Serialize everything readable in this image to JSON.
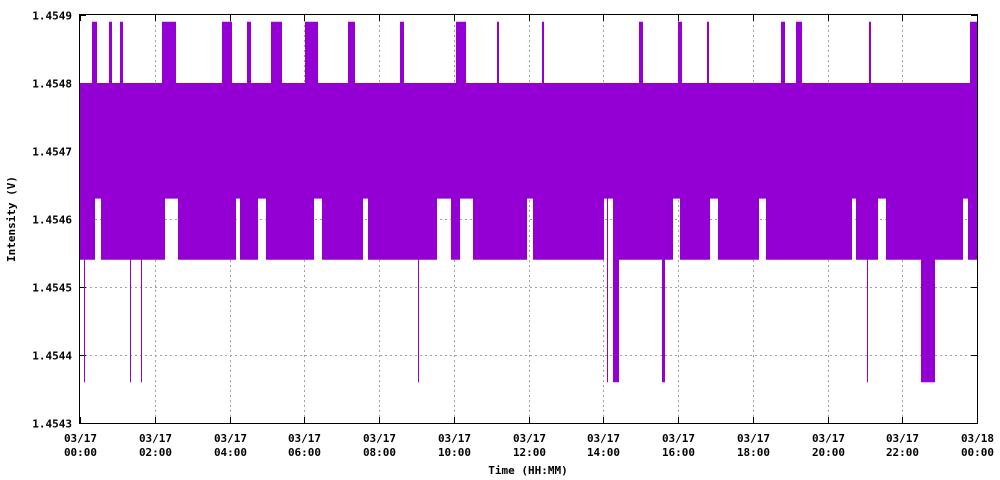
{
  "chart_data": {
    "type": "line",
    "xlabel": "Time (HH:MM)",
    "ylabel": "Intensity (V)",
    "ylim": [
      1.4543,
      1.4549
    ],
    "xlim_hours": [
      0,
      24
    ],
    "grid": true,
    "series_color": "#9400D3",
    "y_ticks": [
      "1.4543",
      "1.4544",
      "1.4545",
      "1.4546",
      "1.4547",
      "1.4548",
      "1.4549"
    ],
    "x_ticks": [
      {
        "hour": 0,
        "date": "03/17",
        "time": "00:00"
      },
      {
        "hour": 2,
        "date": "03/17",
        "time": "02:00"
      },
      {
        "hour": 4,
        "date": "03/17",
        "time": "04:00"
      },
      {
        "hour": 6,
        "date": "03/17",
        "time": "06:00"
      },
      {
        "hour": 8,
        "date": "03/17",
        "time": "08:00"
      },
      {
        "hour": 10,
        "date": "03/17",
        "time": "10:00"
      },
      {
        "hour": 12,
        "date": "03/17",
        "time": "12:00"
      },
      {
        "hour": 14,
        "date": "03/17",
        "time": "14:00"
      },
      {
        "hour": 16,
        "date": "03/17",
        "time": "16:00"
      },
      {
        "hour": 18,
        "date": "03/17",
        "time": "18:00"
      },
      {
        "hour": 20,
        "date": "03/17",
        "time": "20:00"
      },
      {
        "hour": 22,
        "date": "03/17",
        "time": "22:00"
      },
      {
        "hour": 24,
        "date": "03/18",
        "time": "00:00"
      }
    ],
    "levels": [
      1.45436,
      1.45454,
      1.45463,
      1.4548,
      1.45489
    ],
    "dense_band": [
      1.45454,
      1.4548
    ],
    "dense_band_gaps_hours": [
      [
        0.38,
        0.55
      ],
      [
        2.25,
        2.62
      ],
      [
        4.15,
        4.28
      ],
      [
        4.75,
        4.95
      ],
      [
        6.25,
        6.45
      ],
      [
        7.55,
        7.7
      ],
      [
        9.55,
        9.9
      ],
      [
        10.15,
        10.5
      ],
      [
        11.95,
        12.1
      ],
      [
        14.0,
        14.3
      ],
      [
        15.85,
        16.05
      ],
      [
        16.85,
        17.05
      ],
      [
        18.15,
        18.35
      ],
      [
        20.65,
        20.75
      ],
      [
        21.35,
        21.55
      ],
      [
        23.6,
        23.75
      ]
    ],
    "high_spikes_hours": [
      [
        0.3,
        0.45
      ],
      [
        0.75,
        0.85
      ],
      [
        1.05,
        1.15
      ],
      [
        2.18,
        2.55
      ],
      [
        3.78,
        4.05
      ],
      [
        4.45,
        4.55
      ],
      [
        5.1,
        5.4
      ],
      [
        6.0,
        6.35
      ],
      [
        7.15,
        7.35
      ],
      [
        8.55,
        8.65
      ],
      [
        10.05,
        10.32
      ],
      [
        11.15,
        11.2
      ],
      [
        12.35,
        12.4
      ],
      [
        14.95,
        15.05
      ],
      [
        16.0,
        16.1
      ],
      [
        16.75,
        16.82
      ],
      [
        18.75,
        18.85
      ],
      [
        19.15,
        19.3
      ],
      [
        21.1,
        21.15
      ],
      [
        23.8,
        24.0
      ]
    ],
    "low_spikes_hours": [
      [
        0.09,
        0.11
      ],
      [
        1.32,
        1.34
      ],
      [
        1.62,
        1.64
      ],
      [
        1.77,
        1.79
      ],
      [
        9.03,
        9.05
      ],
      [
        14.1,
        14.12
      ],
      [
        14.25,
        14.4
      ],
      [
        15.55,
        15.65
      ],
      [
        20.9,
        20.92
      ],
      [
        21.05,
        21.07
      ],
      [
        22.5,
        22.85
      ]
    ]
  }
}
